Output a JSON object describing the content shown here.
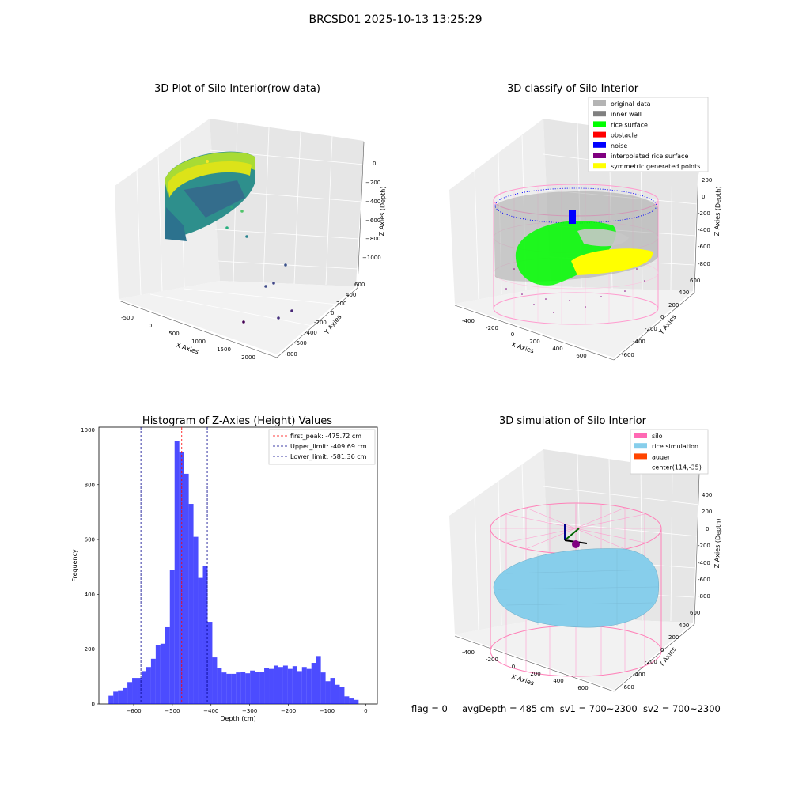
{
  "suptitle": "BRCSD01 2025-10-13 13:25:29",
  "footer": {
    "flag": "flag = 0",
    "avg": "avgDepth = 485 cm",
    "sv1": "sv1 = 700~2300",
    "sv2": "sv2 = 700~2300"
  },
  "chart_data": [
    {
      "type": "scatter",
      "title": "3D Plot of Silo Interior(row data)",
      "xlabel": "X Axies",
      "ylabel": "Y Axies",
      "zlabel": "Z Axies (Depth)",
      "x_ticks": [
        "-500",
        "0",
        "500",
        "1000",
        "1500",
        "2000"
      ],
      "y_ticks": [
        "600",
        "400",
        "200",
        "0",
        "-200",
        "-400",
        "-600",
        "-800"
      ],
      "z_ticks": [
        "0",
        "−200",
        "−400",
        "−600",
        "−800",
        "−1000"
      ],
      "colormap": "viridis"
    },
    {
      "type": "scatter",
      "title": "3D classify of Silo Interior",
      "xlabel": "X Axies",
      "ylabel": "Y Axies",
      "zlabel": "Z Axies (Depth)",
      "x_ticks": [
        "-400",
        "-200",
        "0",
        "200",
        "400",
        "600"
      ],
      "y_ticks": [
        "600",
        "400",
        "200",
        "0",
        "-200",
        "-400",
        "-600"
      ],
      "z_ticks": [
        "200",
        "0",
        "-200",
        "-400",
        "-600",
        "-800"
      ],
      "legend": [
        {
          "label": "original data",
          "color": "#b4b4b4"
        },
        {
          "label": "inner wall",
          "color": "#808080"
        },
        {
          "label": "rice surface",
          "color": "#00ff00"
        },
        {
          "label": "obstacle",
          "color": "#ff0000"
        },
        {
          "label": "noise",
          "color": "#0000ff"
        },
        {
          "label": "interpolated rice surface",
          "color": "#800080"
        },
        {
          "label": "symmetric generated points",
          "color": "#ffff00"
        }
      ]
    },
    {
      "type": "bar",
      "title": "Histogram of Z-Axies (Height) Values",
      "xlabel": "Depth (cm)",
      "ylabel": "Frequency",
      "xlim": [
        -690,
        30
      ],
      "ylim": [
        0,
        1010
      ],
      "x_ticks": [
        -600,
        -500,
        -400,
        -300,
        -200,
        -100,
        0
      ],
      "y_ticks": [
        0,
        200,
        400,
        600,
        800,
        1000
      ],
      "bin_start": -665,
      "bin_width": 12.2,
      "values": [
        30,
        45,
        50,
        58,
        80,
        95,
        95,
        120,
        135,
        165,
        215,
        220,
        280,
        490,
        960,
        920,
        840,
        730,
        610,
        460,
        505,
        300,
        170,
        130,
        115,
        110,
        110,
        115,
        118,
        112,
        122,
        118,
        118,
        130,
        128,
        140,
        135,
        140,
        128,
        138,
        120,
        135,
        128,
        150,
        175,
        115,
        83,
        95,
        70,
        62,
        28,
        20,
        15
      ],
      "bar_color": "#0000ff",
      "vlines": [
        {
          "label": "first_peak: -475.72 cm",
          "x": -475.72,
          "color": "#ff0000"
        },
        {
          "label": "Upper_limit: -409.69 cm",
          "x": -409.69,
          "color": "#00008b"
        },
        {
          "label": "Lower_limit: -581.36 cm",
          "x": -581.36,
          "color": "#00008b"
        }
      ],
      "legend": "top-right"
    },
    {
      "type": "surface",
      "title": "3D simulation of Silo Interior",
      "xlabel": "X Axies",
      "ylabel": "Y Axies",
      "zlabel": "Z Axies (Depth)",
      "x_ticks": [
        "-400",
        "-200",
        "0",
        "200",
        "400",
        "600"
      ],
      "y_ticks": [
        "600",
        "400",
        "200",
        "0",
        "-200",
        "-400",
        "-600"
      ],
      "z_ticks": [
        "400",
        "200",
        "0",
        "-200",
        "-400",
        "-600",
        "-800"
      ],
      "legend": [
        {
          "label": "silo",
          "color": "#ff69b4"
        },
        {
          "label": "rice simulation",
          "color": "#87ceeb"
        },
        {
          "label": "auger",
          "color": "#ff4500"
        },
        {
          "label": "center(114,-35)",
          "color": ""
        }
      ]
    }
  ]
}
